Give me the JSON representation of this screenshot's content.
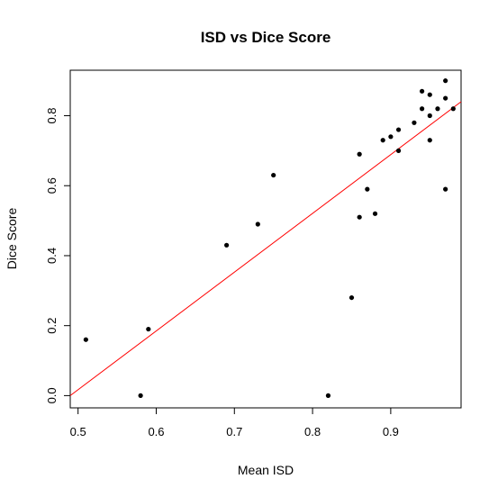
{
  "chart_data": {
    "type": "scatter",
    "title": "ISD vs Dice Score",
    "xlabel": "Mean ISD",
    "ylabel": "Dice Score",
    "xlim": [
      0.49,
      0.99
    ],
    "ylim": [
      -0.035,
      0.93
    ],
    "x_ticks": [
      0.5,
      0.6,
      0.7,
      0.8,
      0.9
    ],
    "x_tick_labels": [
      "0.5",
      "0.6",
      "0.7",
      "0.8",
      "0.9"
    ],
    "y_ticks": [
      0.0,
      0.2,
      0.4,
      0.6,
      0.8
    ],
    "y_tick_labels": [
      "0.0",
      "0.2",
      "0.4",
      "0.6",
      "0.8"
    ],
    "grid": false,
    "point_color": "#000000",
    "points": [
      {
        "x": 0.51,
        "y": 0.16
      },
      {
        "x": 0.58,
        "y": 0.0
      },
      {
        "x": 0.59,
        "y": 0.19
      },
      {
        "x": 0.69,
        "y": 0.43
      },
      {
        "x": 0.73,
        "y": 0.49
      },
      {
        "x": 0.75,
        "y": 0.63
      },
      {
        "x": 0.82,
        "y": 0.0
      },
      {
        "x": 0.85,
        "y": 0.28
      },
      {
        "x": 0.86,
        "y": 0.69
      },
      {
        "x": 0.86,
        "y": 0.51
      },
      {
        "x": 0.87,
        "y": 0.59
      },
      {
        "x": 0.88,
        "y": 0.52
      },
      {
        "x": 0.89,
        "y": 0.73
      },
      {
        "x": 0.9,
        "y": 0.74
      },
      {
        "x": 0.91,
        "y": 0.76
      },
      {
        "x": 0.91,
        "y": 0.7
      },
      {
        "x": 0.93,
        "y": 0.78
      },
      {
        "x": 0.94,
        "y": 0.87
      },
      {
        "x": 0.94,
        "y": 0.82
      },
      {
        "x": 0.95,
        "y": 0.86
      },
      {
        "x": 0.95,
        "y": 0.8
      },
      {
        "x": 0.95,
        "y": 0.73
      },
      {
        "x": 0.96,
        "y": 0.82
      },
      {
        "x": 0.97,
        "y": 0.9
      },
      {
        "x": 0.97,
        "y": 0.85
      },
      {
        "x": 0.97,
        "y": 0.59
      },
      {
        "x": 0.98,
        "y": 0.82
      }
    ],
    "fit_line": {
      "color": "#ff0000",
      "x": [
        0.49,
        0.99
      ],
      "y": [
        0.0,
        0.84
      ]
    }
  }
}
